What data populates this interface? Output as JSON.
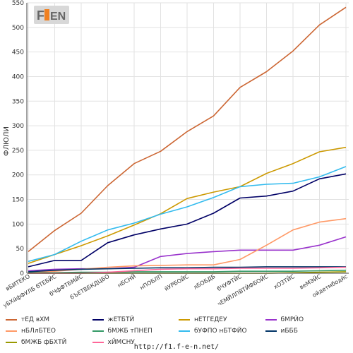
{
  "chart_data": {
    "type": "line",
    "ylabel": "ФЛЮЛИ",
    "ylim": [
      0,
      550
    ],
    "yticks": [
      0,
      50,
      100,
      150,
      200,
      250,
      300,
      350,
      400,
      450,
      500,
      550
    ],
    "grid": true,
    "legend_placement": "bottom",
    "categories": [
      "вБИТЕКО",
      "уБХйфФУЛБ бТЕБЙС",
      "бЧфФТБМЙС",
      "бЪЕТВБКДЦБО",
      "нБСНЙ",
      "нПОБЛП",
      "йУРБОЙС",
      "лБОБДБ",
      "бЧУФТЙС",
      "чЕМЙЛПВТЙФБОЙС",
      "хОЗТЙС",
      "веМЭЙС",
      "ойдетмбодйс"
    ],
    "series": [
      {
        "name": "тЕД вХМ",
        "color": "#cc6633",
        "values": [
          44,
          87,
          122,
          178,
          223,
          248,
          288,
          320,
          378,
          410,
          452,
          505,
          541
        ]
      },
      {
        "name": "жЕТБТЙ",
        "color": "#000066",
        "values": [
          13,
          26,
          26,
          62,
          78,
          90,
          100,
          122,
          153,
          157,
          167,
          192,
          202
        ]
      },
      {
        "name": "нЕТГЕДЕУ",
        "color": "#cc9900",
        "values": [
          20,
          38,
          56,
          76,
          98,
          121,
          152,
          165,
          176,
          203,
          223,
          247,
          256
        ]
      },
      {
        "name": "бМРЙО",
        "color": "#9933cc",
        "values": [
          5,
          8,
          9,
          9,
          12,
          34,
          40,
          44,
          47,
          47,
          47,
          57,
          74
        ]
      },
      {
        "name": "нБЛлБТЕО",
        "color": "#ff9966",
        "values": [
          2,
          4,
          8,
          12,
          15,
          16,
          17,
          17,
          28,
          57,
          88,
          104,
          111
        ]
      },
      {
        "name": "бМЖБ тПНЕП",
        "color": "#339966",
        "values": [
          1,
          1,
          2,
          2,
          3,
          3,
          3,
          3,
          4,
          4,
          4,
          5,
          6
        ]
      },
      {
        "name": "бУФПО нБТФЙО",
        "color": "#33bbee",
        "values": [
          24,
          38,
          65,
          88,
          102,
          120,
          135,
          154,
          176,
          181,
          183,
          196,
          217
        ]
      },
      {
        "name": "иБББ",
        "color": "#003366",
        "values": [
          3,
          6,
          8,
          9,
          10,
          11,
          11,
          12,
          12,
          13,
          13,
          13,
          13
        ]
      },
      {
        "name": "бМЖБ фБХТЙ",
        "color": "#999900",
        "values": [
          0,
          0,
          0,
          0,
          0,
          0,
          0,
          0,
          0,
          0,
          1,
          2,
          3
        ]
      },
      {
        "name": "хЙМСНУ",
        "color": "#ff6699",
        "values": [
          0,
          0,
          0,
          2,
          5,
          8,
          9,
          9,
          10,
          10,
          10,
          11,
          12
        ]
      }
    ]
  },
  "logo": {
    "text": "F1EN"
  },
  "footer": {
    "url": "http://f1.f-e-n.net/"
  }
}
